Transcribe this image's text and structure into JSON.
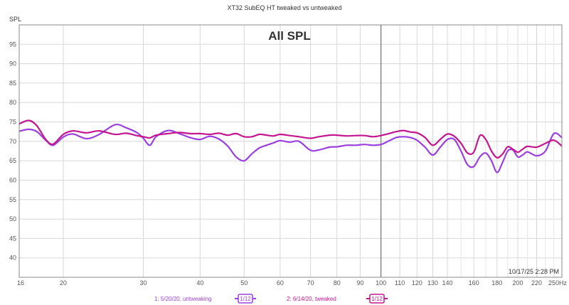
{
  "chart_data": {
    "type": "line",
    "title": "XT32 SubEQ HT tweaked vs untweaked",
    "overlay_title": "All SPL",
    "ylabel": "SPL",
    "x_unit": "Hz",
    "x_scale": "log",
    "xlim": [
      16,
      250
    ],
    "ylim": [
      35,
      100
    ],
    "x_ticks": [
      16,
      20,
      30,
      40,
      50,
      60,
      70,
      80,
      90,
      100,
      110,
      120,
      130,
      140,
      160,
      180,
      200,
      220,
      250
    ],
    "x_tick_labels": [
      "16",
      "20",
      "30",
      "40",
      "50",
      "60",
      "70",
      "80",
      "90",
      "100",
      "110",
      "120",
      "130",
      "140",
      "160",
      "180",
      "200",
      "220",
      "250Hz"
    ],
    "y_ticks": [
      40,
      45,
      50,
      55,
      60,
      65,
      70,
      75,
      80,
      85,
      90,
      95
    ],
    "grid": true,
    "legend_position": "bottom",
    "timestamp": "10/17/25 2:28 PM",
    "series": [
      {
        "name": "1: 5/20/20, untweaking",
        "legend_badge": "1/12",
        "color": "#9b3fe0",
        "x": [
          16,
          16.8,
          17.5,
          18.3,
          19,
          20,
          21,
          22.5,
          24,
          26,
          27.5,
          29,
          30,
          31,
          32,
          34,
          36,
          38,
          40,
          42,
          44,
          46,
          48,
          50,
          52,
          54,
          56,
          58,
          60,
          63,
          66,
          70,
          73,
          77,
          80,
          84,
          88,
          92,
          96,
          100,
          104,
          108,
          112,
          116,
          120,
          125,
          130,
          135,
          140,
          145,
          150,
          155,
          160,
          165,
          170,
          175,
          180,
          185,
          190,
          195,
          200,
          205,
          210,
          220,
          230,
          240,
          250
        ],
        "y": [
          72.6,
          73.1,
          72.5,
          70.3,
          69.0,
          71.1,
          71.9,
          70.7,
          71.8,
          74.3,
          73.5,
          72.3,
          70.8,
          69.0,
          71.2,
          72.8,
          72.0,
          71.0,
          70.5,
          71.3,
          70.6,
          68.8,
          66.0,
          65.0,
          66.8,
          68.3,
          69.0,
          69.6,
          70.2,
          69.8,
          70.0,
          67.7,
          67.8,
          68.5,
          68.6,
          69.0,
          69.0,
          69.2,
          69.0,
          69.2,
          70.1,
          71.0,
          71.2,
          71.0,
          70.3,
          68.5,
          66.5,
          68.5,
          70.5,
          70.5,
          67.5,
          64.0,
          63.5,
          66.0,
          67.0,
          65.0,
          62.0,
          64.5,
          67.5,
          67.8,
          66.0,
          66.5,
          67.3,
          66.3,
          67.5,
          72.0,
          71.0
        ]
      },
      {
        "name": "2: 6/14/20, tweaked",
        "legend_badge": "1/12",
        "color": "#c4168e",
        "x": [
          16,
          16.8,
          17.5,
          18.3,
          19,
          20,
          21,
          22.5,
          24,
          26,
          27.5,
          29,
          30,
          31,
          32,
          34,
          36,
          38,
          40,
          42,
          44,
          46,
          48,
          50,
          52,
          54,
          56,
          58,
          60,
          63,
          66,
          70,
          73,
          77,
          80,
          84,
          88,
          92,
          96,
          100,
          104,
          108,
          112,
          116,
          120,
          125,
          130,
          135,
          140,
          145,
          150,
          155,
          160,
          165,
          170,
          175,
          180,
          185,
          190,
          195,
          200,
          205,
          210,
          220,
          230,
          240,
          250
        ],
        "y": [
          74.5,
          75.4,
          74.0,
          70.5,
          69.3,
          71.8,
          72.7,
          72.2,
          72.7,
          71.8,
          72.1,
          71.5,
          71.2,
          70.9,
          71.6,
          72.0,
          72.3,
          72.0,
          72.0,
          71.8,
          72.1,
          71.6,
          72.0,
          71.2,
          71.2,
          71.8,
          71.6,
          71.4,
          71.8,
          71.5,
          71.2,
          70.8,
          71.2,
          71.6,
          71.6,
          71.4,
          71.5,
          71.5,
          71.2,
          71.5,
          72.0,
          72.5,
          72.8,
          72.4,
          72.2,
          71.0,
          69.0,
          70.5,
          71.9,
          71.3,
          69.5,
          67.0,
          67.2,
          71.5,
          70.5,
          67.5,
          65.8,
          66.7,
          68.6,
          68.0,
          67.2,
          68.0,
          68.7,
          68.5,
          69.5,
          70.3,
          68.8
        ]
      }
    ]
  }
}
